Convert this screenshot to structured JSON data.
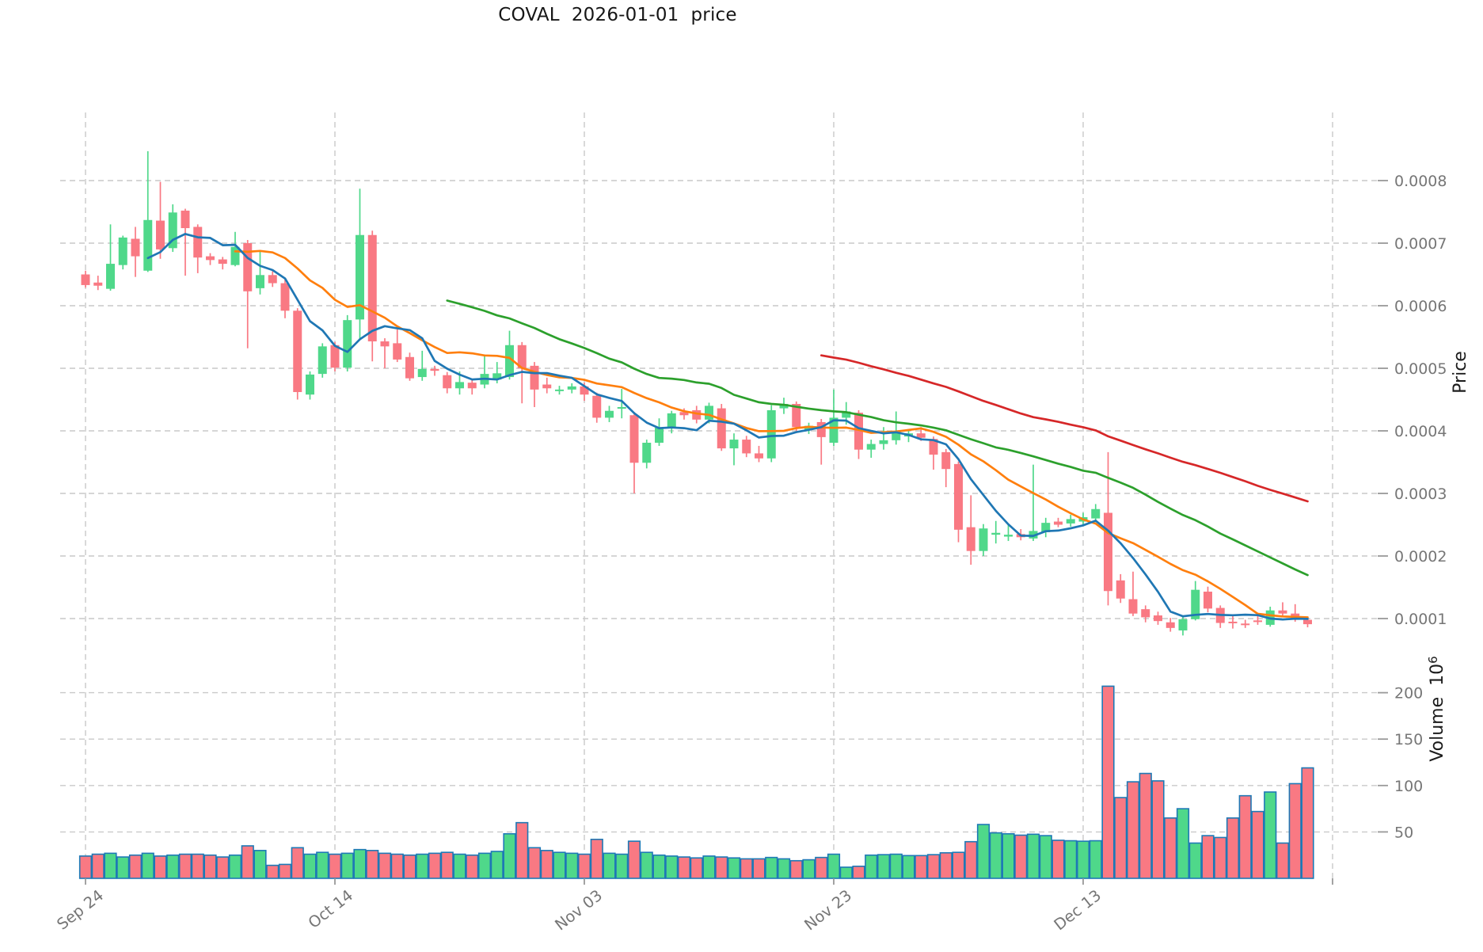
{
  "title": "COVAL  2026-01-01  price",
  "chart_data": {
    "type": "candlestick",
    "title": "COVAL  2026-01-01  price",
    "x_axis": {
      "tick_labels": [
        "Sep 24",
        "Oct 14",
        "Nov 03",
        "Nov 23",
        "Dec 13",
        ""
      ],
      "tick_indices": [
        0,
        20,
        40,
        60,
        80,
        100
      ]
    },
    "price_axis": {
      "label": "Price",
      "side": "right",
      "unit": 0.0001,
      "tick_values_units": [
        1,
        2,
        3,
        4,
        5,
        6,
        7,
        8
      ],
      "tick_labels": [
        "0.0001",
        "0.0002",
        "0.0003",
        "0.0004",
        "0.0005",
        "0.0006",
        "0.0007",
        "0.0008"
      ]
    },
    "volume_axis": {
      "label": "Volume",
      "unit_base": "10",
      "unit_exponent": "6",
      "side": "right",
      "tick_values": [
        50,
        100,
        150,
        200
      ],
      "tick_labels": [
        "50",
        "100",
        "150",
        "200"
      ]
    },
    "grid": {
      "on": true,
      "color": "#c9c9c9",
      "dash": "7 5"
    },
    "colors": {
      "up": "#4fd88a",
      "down": "#f97983",
      "volume_edge": "#1e79b6",
      "mav_blue": "#1f77b4",
      "mav_orange": "#ff7f0e",
      "mav_green": "#2ca02c",
      "mav_red": "#d62728",
      "tick_text": "#767676",
      "axis_label_text": "#1c1c1c",
      "tick_mark": "#999999"
    },
    "mav_windows": [
      6,
      13,
      30,
      60
    ],
    "mav_colors_by_window": {
      "6": "#1f77b4",
      "13": "#ff7f0e",
      "30": "#2ca02c",
      "60": "#d62728"
    },
    "ohlc_units": [
      [
        6.5,
        6.56,
        6.29,
        6.33
      ],
      [
        6.37,
        6.48,
        6.25,
        6.32
      ],
      [
        6.27,
        7.3,
        6.24,
        6.67
      ],
      [
        6.65,
        7.12,
        6.58,
        7.09
      ],
      [
        7.07,
        7.26,
        6.46,
        6.79
      ],
      [
        6.56,
        8.47,
        6.54,
        7.37
      ],
      [
        7.36,
        7.98,
        6.75,
        6.9
      ],
      [
        6.92,
        7.62,
        6.86,
        7.49
      ],
      [
        7.52,
        7.55,
        6.48,
        7.24
      ],
      [
        7.26,
        7.3,
        6.52,
        6.77
      ],
      [
        6.79,
        6.84,
        6.65,
        6.73
      ],
      [
        6.74,
        6.78,
        6.58,
        6.67
      ],
      [
        6.65,
        7.18,
        6.63,
        6.94
      ],
      [
        7.0,
        7.05,
        5.32,
        6.23
      ],
      [
        6.28,
        6.88,
        6.18,
        6.49
      ],
      [
        6.49,
        6.55,
        6.3,
        6.36
      ],
      [
        6.36,
        6.42,
        5.8,
        5.92
      ],
      [
        5.92,
        5.96,
        4.5,
        4.62
      ],
      [
        4.58,
        4.95,
        4.5,
        4.9
      ],
      [
        4.91,
        5.4,
        4.85,
        5.35
      ],
      [
        5.37,
        5.42,
        4.95,
        5.01
      ],
      [
        5.01,
        5.85,
        4.95,
        5.77
      ],
      [
        5.78,
        7.87,
        5.47,
        7.13
      ],
      [
        7.13,
        7.2,
        5.11,
        5.43
      ],
      [
        5.43,
        5.48,
        5.0,
        5.35
      ],
      [
        5.4,
        5.62,
        5.1,
        5.14
      ],
      [
        5.18,
        5.25,
        4.8,
        4.84
      ],
      [
        4.86,
        5.28,
        4.8,
        4.99
      ],
      [
        4.99,
        5.04,
        4.88,
        4.96
      ],
      [
        4.89,
        4.94,
        4.6,
        4.68
      ],
      [
        4.68,
        4.95,
        4.58,
        4.78
      ],
      [
        4.77,
        4.82,
        4.58,
        4.68
      ],
      [
        4.74,
        5.22,
        4.68,
        4.91
      ],
      [
        4.82,
        5.1,
        4.76,
        4.92
      ],
      [
        4.86,
        5.6,
        4.82,
        5.37
      ],
      [
        5.37,
        5.42,
        4.44,
        5.0
      ],
      [
        5.04,
        5.1,
        4.38,
        4.66
      ],
      [
        4.74,
        4.85,
        4.6,
        4.68
      ],
      [
        4.64,
        4.72,
        4.58,
        4.66
      ],
      [
        4.66,
        4.76,
        4.6,
        4.71
      ],
      [
        4.71,
        4.77,
        4.48,
        4.58
      ],
      [
        4.56,
        4.61,
        4.13,
        4.21
      ],
      [
        4.21,
        4.4,
        4.14,
        4.32
      ],
      [
        4.36,
        4.67,
        4.2,
        4.38
      ],
      [
        4.25,
        4.3,
        3.0,
        3.49
      ],
      [
        3.49,
        3.86,
        3.4,
        3.81
      ],
      [
        3.81,
        4.2,
        3.76,
        4.05
      ],
      [
        4.05,
        4.32,
        3.96,
        4.28
      ],
      [
        4.3,
        4.36,
        4.18,
        4.25
      ],
      [
        4.33,
        4.4,
        4.12,
        4.18
      ],
      [
        4.18,
        4.45,
        4.12,
        4.4
      ],
      [
        4.36,
        4.43,
        3.68,
        3.72
      ],
      [
        3.72,
        3.96,
        3.45,
        3.86
      ],
      [
        3.86,
        3.92,
        3.58,
        3.64
      ],
      [
        3.64,
        3.76,
        3.5,
        3.56
      ],
      [
        3.56,
        4.41,
        3.5,
        4.33
      ],
      [
        4.36,
        4.53,
        4.27,
        4.43
      ],
      [
        4.43,
        4.47,
        4.0,
        4.06
      ],
      [
        4.02,
        4.13,
        3.95,
        4.08
      ],
      [
        4.14,
        4.19,
        3.46,
        3.9
      ],
      [
        3.81,
        4.66,
        3.76,
        4.21
      ],
      [
        4.21,
        4.46,
        4.1,
        4.31
      ],
      [
        4.29,
        4.33,
        3.55,
        3.7
      ],
      [
        3.7,
        3.86,
        3.57,
        3.79
      ],
      [
        3.79,
        4.06,
        3.7,
        3.85
      ],
      [
        3.85,
        4.31,
        3.78,
        4.0
      ],
      [
        3.91,
        4.01,
        3.82,
        3.96
      ],
      [
        3.96,
        4.06,
        3.84,
        3.89
      ],
      [
        3.87,
        3.91,
        3.38,
        3.62
      ],
      [
        3.66,
        3.71,
        3.1,
        3.39
      ],
      [
        3.47,
        3.51,
        2.22,
        2.42
      ],
      [
        2.46,
        2.97,
        1.86,
        2.08
      ],
      [
        2.08,
        2.51,
        2.0,
        2.44
      ],
      [
        2.34,
        2.56,
        2.2,
        2.37
      ],
      [
        2.31,
        2.5,
        2.24,
        2.34
      ],
      [
        2.35,
        2.43,
        2.25,
        2.3
      ],
      [
        2.28,
        3.46,
        2.24,
        2.4
      ],
      [
        2.38,
        2.61,
        2.3,
        2.53
      ],
      [
        2.55,
        2.61,
        2.46,
        2.5
      ],
      [
        2.52,
        2.66,
        2.47,
        2.59
      ],
      [
        2.55,
        2.69,
        2.5,
        2.62
      ],
      [
        2.6,
        2.83,
        2.54,
        2.75
      ],
      [
        2.69,
        3.66,
        1.21,
        1.44
      ],
      [
        1.61,
        1.71,
        1.25,
        1.32
      ],
      [
        1.31,
        1.75,
        1.04,
        1.08
      ],
      [
        1.15,
        1.21,
        0.94,
        1.02
      ],
      [
        1.05,
        1.11,
        0.9,
        0.96
      ],
      [
        0.94,
        1.01,
        0.79,
        0.85
      ],
      [
        0.81,
        1.03,
        0.73,
        0.99
      ],
      [
        0.99,
        1.6,
        0.97,
        1.46
      ],
      [
        1.43,
        1.51,
        1.1,
        1.16
      ],
      [
        1.17,
        1.21,
        0.85,
        0.93
      ],
      [
        0.95,
        1.06,
        0.84,
        0.93
      ],
      [
        0.92,
        0.98,
        0.85,
        0.9
      ],
      [
        0.97,
        1.06,
        0.9,
        0.95
      ],
      [
        0.9,
        1.19,
        0.87,
        1.13
      ],
      [
        1.13,
        1.26,
        1.05,
        1.08
      ],
      [
        1.08,
        1.23,
        0.95,
        1.0
      ],
      [
        0.98,
        1.03,
        0.86,
        0.91
      ]
    ],
    "volumes_millions": [
      24,
      26,
      27,
      23,
      25,
      27,
      24,
      25,
      26,
      26,
      25,
      23,
      25,
      35,
      30,
      14,
      15,
      33,
      26,
      28,
      26,
      27,
      31,
      30,
      27,
      26,
      25,
      26,
      27,
      28,
      26,
      25,
      27,
      29,
      48,
      60,
      33,
      30,
      28,
      27,
      26,
      42,
      27,
      26,
      40,
      28,
      25,
      24,
      23,
      22,
      24,
      23,
      22,
      21,
      21,
      22.5,
      21,
      19,
      20,
      22.5,
      26,
      12,
      13,
      25,
      25.5,
      26,
      24.5,
      24.5,
      25.5,
      27.5,
      28,
      39.5,
      58,
      49,
      48,
      46.5,
      47.5,
      46,
      41,
      40.5,
      40,
      40.5,
      207,
      87,
      104,
      113,
      105,
      65,
      75,
      38,
      46,
      44,
      65,
      89,
      72,
      93,
      38,
      102,
      119
    ]
  }
}
